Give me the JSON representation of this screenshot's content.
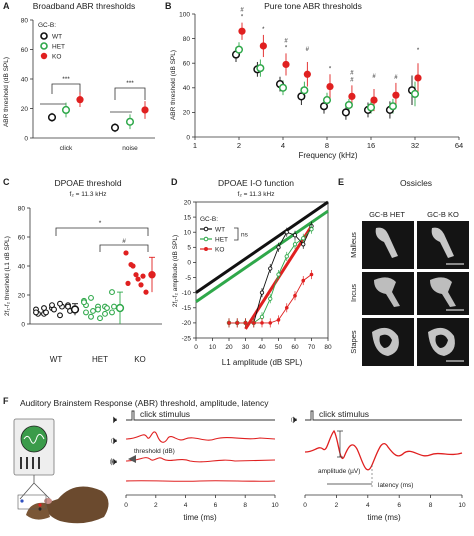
{
  "panels": {
    "A": {
      "letter": "A",
      "title": "Broadband ABR thresholds",
      "legend_title": "GC-B:",
      "legend": [
        "WT",
        "HET",
        "KO"
      ],
      "ylabel": "ABR threshold (dB SPL)",
      "yticks": [
        "0",
        "20",
        "40",
        "60",
        "80"
      ],
      "xcats": [
        "click",
        "noise"
      ],
      "sig": [
        "***",
        "***"
      ]
    },
    "B": {
      "letter": "B",
      "title": "Pure tone ABR thresholds",
      "ylabel": "ABR threshold (dB SPL)",
      "xlabel": "Frequency (kHz)",
      "xticks": [
        "1",
        "2",
        "4",
        "8",
        "16",
        "32",
        "64"
      ],
      "yticks": [
        "0",
        "20",
        "40",
        "60",
        "80",
        "100"
      ],
      "markers": [
        "*",
        "#",
        "*",
        "#",
        "*",
        "#",
        "*",
        "#",
        "#",
        "#",
        "#",
        "*"
      ]
    },
    "C": {
      "letter": "C",
      "title": "DPOAE threshold",
      "subtitle": "f₂ = 11.3 kHz",
      "ylabel": "2f₁-f₂ threshold (L1 dB SPL)",
      "yticks": [
        "0",
        "20",
        "40",
        "60",
        "80"
      ],
      "xcats": [
        "WT",
        "HET",
        "KO"
      ],
      "sig": [
        "*",
        "#"
      ]
    },
    "D": {
      "letter": "D",
      "title": "DPOAE I-O function",
      "subtitle": "f₂ = 11.3 kHz",
      "ylabel": "2f₁-f₂ amplitude (dB SPL)",
      "xlabel": "L1 amplitude (dB SPL)",
      "legend_title": "GC-B:",
      "legend": [
        "WT",
        "HET",
        "KO"
      ],
      "ns": "ns",
      "xticks": [
        "0",
        "10",
        "20",
        "30",
        "40",
        "50",
        "60",
        "70",
        "80"
      ],
      "yticks": [
        "20",
        "15",
        "10",
        "5",
        "0",
        "-5",
        "-10",
        "-15",
        "-20",
        "-25"
      ]
    },
    "E": {
      "letter": "E",
      "title": "Ossicles",
      "cols": [
        "GC-B HET",
        "GC-B KO"
      ],
      "rows": [
        "Malleus",
        "Incus",
        "Stapes"
      ]
    },
    "F": {
      "letter": "F",
      "title": "Auditory Brainstem Response (ABR)   threshold, amplitude, latency",
      "click": "click stimulus",
      "threshold": "threshold (dB)",
      "amplitude": "amplitude (µV)",
      "latency": "latency (ms)",
      "xlabel": "time (ms)",
      "xticks": [
        "0",
        "2",
        "4",
        "6",
        "8",
        "10"
      ]
    }
  },
  "colors": {
    "wt": "#111111",
    "het": "#2fa84a",
    "ko": "#e02020"
  },
  "chart_data": [
    {
      "type": "scatter",
      "panel": "A",
      "categories": [
        "click",
        "noise"
      ],
      "series": [
        {
          "name": "WT",
          "values": [
            14,
            7
          ],
          "err": [
            3,
            3
          ]
        },
        {
          "name": "HET",
          "values": [
            19,
            11
          ],
          "err": [
            5,
            5
          ]
        },
        {
          "name": "KO",
          "values": [
            26,
            19
          ],
          "err": [
            5,
            6
          ]
        }
      ],
      "ylim": [
        0,
        80
      ]
    },
    {
      "type": "line",
      "panel": "B",
      "x": [
        2,
        2.8,
        4,
        5.6,
        8,
        11.3,
        16,
        22.6,
        32
      ],
      "series": [
        {
          "name": "WT",
          "values": [
            67,
            55,
            43,
            33,
            25,
            20,
            22,
            22,
            38
          ],
          "err": [
            6,
            6,
            6,
            7,
            6,
            6,
            6,
            7,
            12
          ]
        },
        {
          "name": "HET",
          "values": [
            71,
            56,
            40,
            38,
            30,
            26,
            24,
            25,
            35
          ],
          "err": [
            6,
            7,
            6,
            7,
            6,
            5,
            5,
            6,
            10
          ]
        },
        {
          "name": "KO",
          "values": [
            86,
            74,
            59,
            51,
            41,
            33,
            30,
            34,
            48
          ],
          "err": [
            7,
            9,
            9,
            10,
            10,
            9,
            9,
            10,
            12
          ]
        }
      ],
      "xscale": "log2",
      "xlim": [
        1,
        64
      ],
      "ylim": [
        0,
        100
      ]
    },
    {
      "type": "scatter",
      "panel": "C",
      "categories": [
        "WT",
        "HET",
        "KO"
      ],
      "series": [
        {
          "name": "WT",
          "values": [
            10,
            7,
            11,
            6,
            13,
            7,
            8,
            10,
            12,
            9,
            8,
            11,
            13,
            14,
            12
          ],
          "mean": 10,
          "err": 4
        },
        {
          "name": "HET",
          "values": [
            16,
            5,
            12,
            12,
            8,
            13,
            9,
            4,
            11,
            12,
            15,
            18,
            10,
            7,
            22,
            8
          ],
          "mean": 11,
          "err": 11
        },
        {
          "name": "KO",
          "values": [
            49,
            41,
            34,
            27,
            22,
            28,
            40,
            31,
            33
          ],
          "mean": 34,
          "err": 12
        }
      ],
      "ylim": [
        0,
        80
      ]
    },
    {
      "type": "line",
      "panel": "D",
      "x": [
        20,
        25,
        30,
        35,
        40,
        45,
        50,
        55,
        60,
        65,
        70
      ],
      "series": [
        {
          "name": "WT",
          "values": [
            -20,
            -20,
            -20,
            -20,
            -10,
            -2,
            5,
            10,
            9,
            6,
            12
          ]
        },
        {
          "name": "HET",
          "values": [
            -20,
            -20,
            -20,
            -20,
            -18,
            -12,
            -4,
            2,
            6,
            8,
            11
          ]
        },
        {
          "name": "KO",
          "values": [
            -20,
            -20,
            -20,
            -20,
            -20,
            -20,
            -19,
            -15,
            -11,
            -6,
            -4
          ]
        }
      ],
      "fits": [
        {
          "name": "WT",
          "x": [
            0,
            80
          ],
          "y": [
            -10,
            20
          ]
        },
        {
          "name": "HET",
          "x": [
            0,
            80
          ],
          "y": [
            -13,
            17
          ]
        },
        {
          "name": "KO",
          "x": [
            30,
            70
          ],
          "y": [
            -22,
            12
          ]
        }
      ],
      "xlim": [
        0,
        80
      ],
      "ylim": [
        -25,
        20
      ]
    }
  ]
}
